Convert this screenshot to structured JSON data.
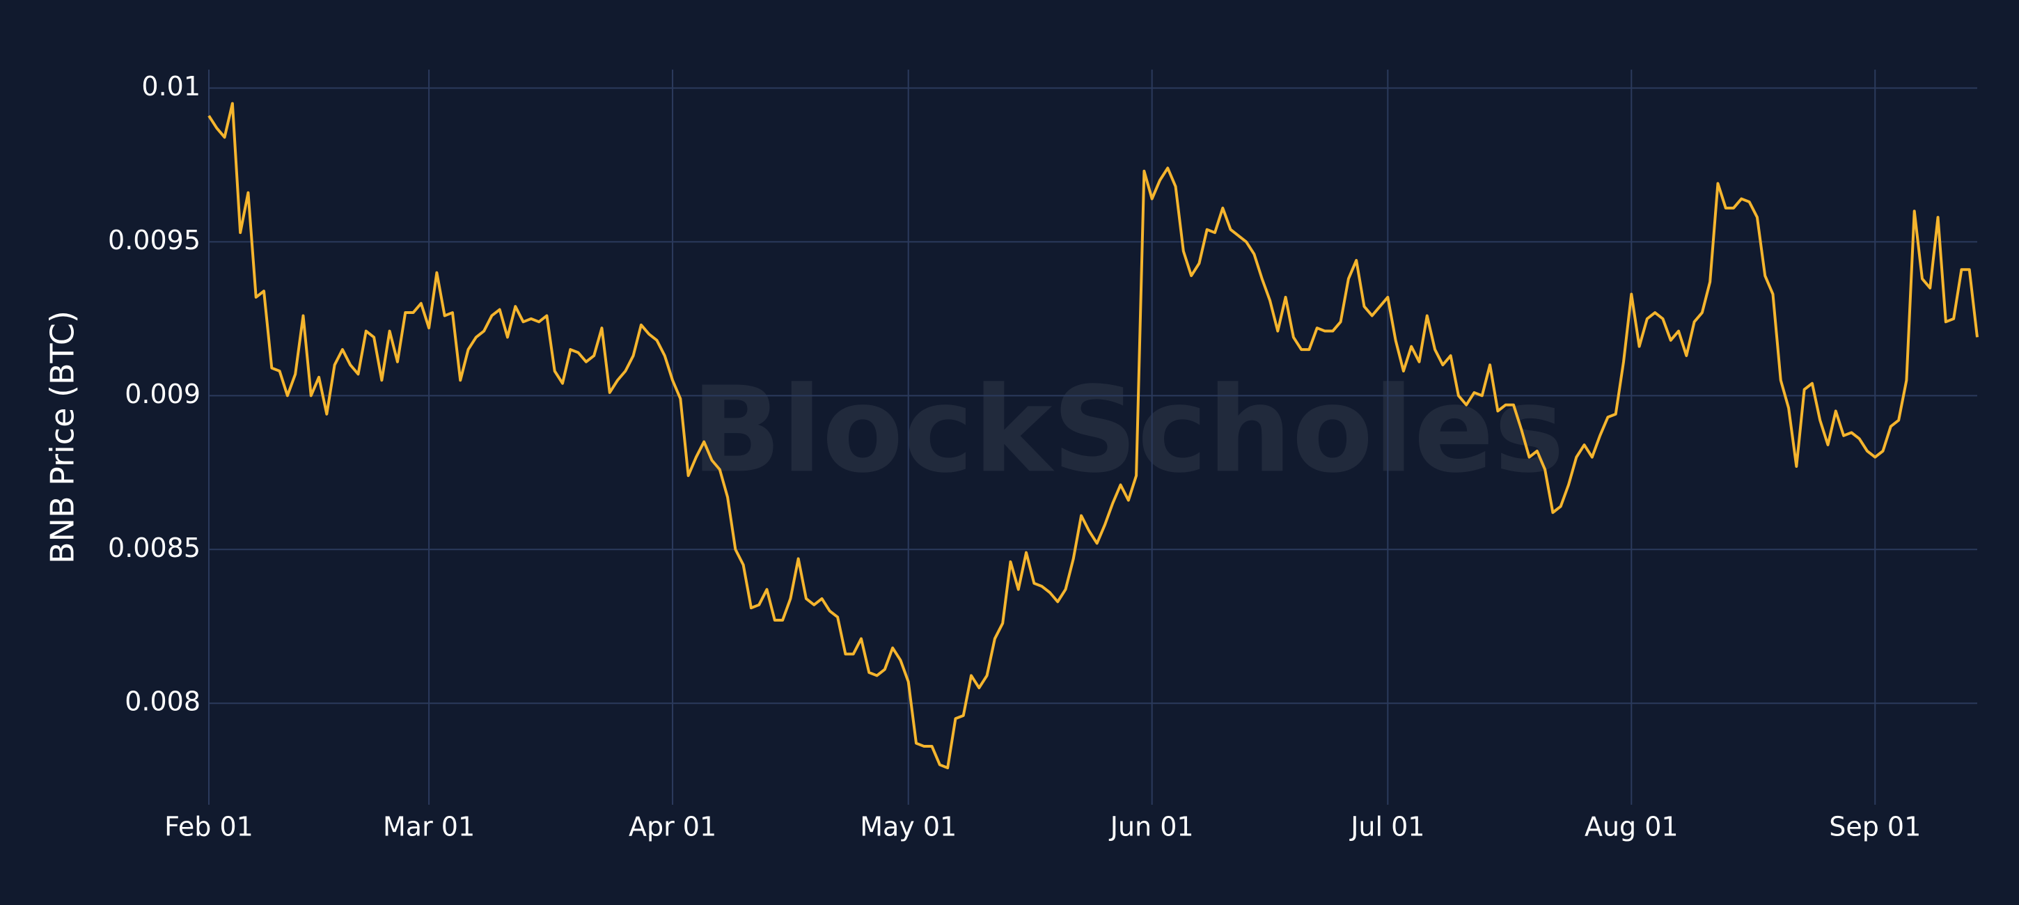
{
  "chart_data": {
    "type": "line",
    "y_label": "BNB Price (BTC)",
    "watermark": "BlockScholes",
    "color": "#f5b52e",
    "grid": true,
    "x": [
      "Feb 01",
      "Feb 02",
      "Feb 03",
      "Feb 04",
      "Feb 05",
      "Feb 06",
      "Feb 07",
      "Feb 08",
      "Feb 09",
      "Feb 10",
      "Feb 11",
      "Feb 12",
      "Feb 13",
      "Feb 14",
      "Feb 15",
      "Feb 16",
      "Feb 17",
      "Feb 18",
      "Feb 19",
      "Feb 20",
      "Feb 21",
      "Feb 22",
      "Feb 23",
      "Feb 24",
      "Feb 25",
      "Feb 26",
      "Feb 27",
      "Feb 28",
      "Mar 01",
      "Mar 02",
      "Mar 03",
      "Mar 04",
      "Mar 05",
      "Mar 06",
      "Mar 07",
      "Mar 08",
      "Mar 09",
      "Mar 10",
      "Mar 11",
      "Mar 12",
      "Mar 13",
      "Mar 14",
      "Mar 15",
      "Mar 16",
      "Mar 17",
      "Mar 18",
      "Mar 19",
      "Mar 20",
      "Mar 21",
      "Mar 22",
      "Mar 23",
      "Mar 24",
      "Mar 25",
      "Mar 26",
      "Mar 27",
      "Mar 28",
      "Mar 29",
      "Mar 30",
      "Mar 31",
      "Apr 01",
      "Apr 02",
      "Apr 03",
      "Apr 04",
      "Apr 05",
      "Apr 06",
      "Apr 07",
      "Apr 08",
      "Apr 09",
      "Apr 10",
      "Apr 11",
      "Apr 12",
      "Apr 13",
      "Apr 14",
      "Apr 15",
      "Apr 16",
      "Apr 17",
      "Apr 18",
      "Apr 19",
      "Apr 20",
      "Apr 21",
      "Apr 22",
      "Apr 23",
      "Apr 24",
      "Apr 25",
      "Apr 26",
      "Apr 27",
      "Apr 28",
      "Apr 29",
      "Apr 30",
      "May 01",
      "May 02",
      "May 03",
      "May 04",
      "May 05",
      "May 06",
      "May 07",
      "May 08",
      "May 09",
      "May 10",
      "May 11",
      "May 12",
      "May 13",
      "May 14",
      "May 15",
      "May 16",
      "May 17",
      "May 18",
      "May 19",
      "May 20",
      "May 21",
      "May 22",
      "May 23",
      "May 24",
      "May 25",
      "May 26",
      "May 27",
      "May 28",
      "May 29",
      "May 30",
      "May 31",
      "Jun 01",
      "Jun 02",
      "Jun 03",
      "Jun 04",
      "Jun 05",
      "Jun 06",
      "Jun 07",
      "Jun 08",
      "Jun 09",
      "Jun 10",
      "Jun 11",
      "Jun 12",
      "Jun 13",
      "Jun 14",
      "Jun 15",
      "Jun 16",
      "Jun 17",
      "Jun 18",
      "Jun 19",
      "Jun 20",
      "Jun 21",
      "Jun 22",
      "Jun 23",
      "Jun 24",
      "Jun 25",
      "Jun 26",
      "Jun 27",
      "Jun 28",
      "Jun 29",
      "Jun 30",
      "Jul 01",
      "Jul 02",
      "Jul 03",
      "Jul 04",
      "Jul 05",
      "Jul 06",
      "Jul 07",
      "Jul 08",
      "Jul 09",
      "Jul 10",
      "Jul 11",
      "Jul 12",
      "Jul 13",
      "Jul 14",
      "Jul 15",
      "Jul 16",
      "Jul 17",
      "Jul 18",
      "Jul 19",
      "Jul 20",
      "Jul 21",
      "Jul 22",
      "Jul 23",
      "Jul 24",
      "Jul 25",
      "Jul 26",
      "Jul 27",
      "Jul 28",
      "Jul 29",
      "Jul 30",
      "Jul 31",
      "Aug 01",
      "Aug 02",
      "Aug 03",
      "Aug 04",
      "Aug 05",
      "Aug 06",
      "Aug 07",
      "Aug 08",
      "Aug 09",
      "Aug 10",
      "Aug 11",
      "Aug 12",
      "Aug 13",
      "Aug 14",
      "Aug 15",
      "Aug 16",
      "Aug 17",
      "Aug 18",
      "Aug 19",
      "Aug 20",
      "Aug 21",
      "Aug 22",
      "Aug 23",
      "Aug 24",
      "Aug 25",
      "Aug 26",
      "Aug 27",
      "Aug 28",
      "Aug 29",
      "Aug 30",
      "Aug 31",
      "Sep 01",
      "Sep 02",
      "Sep 03",
      "Sep 04",
      "Sep 05",
      "Sep 06",
      "Sep 07",
      "Sep 08",
      "Sep 09",
      "Sep 10",
      "Sep 11",
      "Sep 12",
      "Sep 13",
      "Sep 14"
    ],
    "values": [
      0.00991,
      0.00987,
      0.00984,
      0.00995,
      0.00953,
      0.00966,
      0.00932,
      0.00934,
      0.00909,
      0.00908,
      0.009,
      0.00907,
      0.00926,
      0.009,
      0.00906,
      0.00894,
      0.0091,
      0.00915,
      0.0091,
      0.00907,
      0.00921,
      0.00919,
      0.00905,
      0.00921,
      0.00911,
      0.00927,
      0.00927,
      0.0093,
      0.00922,
      0.0094,
      0.00926,
      0.00927,
      0.00905,
      0.00915,
      0.00919,
      0.00921,
      0.00926,
      0.00928,
      0.00919,
      0.00929,
      0.00924,
      0.00925,
      0.00924,
      0.00926,
      0.00908,
      0.00904,
      0.00915,
      0.00914,
      0.00911,
      0.00913,
      0.00922,
      0.00901,
      0.00905,
      0.00908,
      0.00913,
      0.00923,
      0.0092,
      0.00918,
      0.00913,
      0.00905,
      0.00899,
      0.00874,
      0.0088,
      0.00885,
      0.00879,
      0.00876,
      0.00867,
      0.0085,
      0.00845,
      0.00831,
      0.00832,
      0.00837,
      0.00827,
      0.00827,
      0.00834,
      0.00847,
      0.00834,
      0.00832,
      0.00834,
      0.0083,
      0.00828,
      0.00816,
      0.00816,
      0.00821,
      0.0081,
      0.00809,
      0.00811,
      0.00818,
      0.00814,
      0.00807,
      0.00787,
      0.00786,
      0.00786,
      0.0078,
      0.00779,
      0.00795,
      0.00796,
      0.00809,
      0.00805,
      0.00809,
      0.00821,
      0.00826,
      0.00846,
      0.00837,
      0.00849,
      0.00839,
      0.00838,
      0.00836,
      0.00833,
      0.00837,
      0.00847,
      0.00861,
      0.00856,
      0.00852,
      0.00858,
      0.00865,
      0.00871,
      0.00866,
      0.00874,
      0.00973,
      0.00964,
      0.0097,
      0.00974,
      0.00968,
      0.00947,
      0.00939,
      0.00943,
      0.00954,
      0.00953,
      0.00961,
      0.00954,
      0.00952,
      0.0095,
      0.00946,
      0.00938,
      0.00931,
      0.00921,
      0.00932,
      0.00919,
      0.00915,
      0.00915,
      0.00922,
      0.00921,
      0.00921,
      0.00924,
      0.00938,
      0.00944,
      0.00929,
      0.00926,
      0.00929,
      0.00932,
      0.00918,
      0.00908,
      0.00916,
      0.00911,
      0.00926,
      0.00915,
      0.0091,
      0.00913,
      0.009,
      0.00897,
      0.00901,
      0.009,
      0.0091,
      0.00895,
      0.00897,
      0.00897,
      0.00889,
      0.0088,
      0.00882,
      0.00876,
      0.00862,
      0.00864,
      0.00871,
      0.0088,
      0.00884,
      0.0088,
      0.00887,
      0.00893,
      0.00894,
      0.00911,
      0.00933,
      0.00916,
      0.00925,
      0.00927,
      0.00925,
      0.00918,
      0.00921,
      0.00913,
      0.00924,
      0.00927,
      0.00937,
      0.00969,
      0.00961,
      0.00961,
      0.00964,
      0.00963,
      0.00958,
      0.00939,
      0.00933,
      0.00905,
      0.00896,
      0.00877,
      0.00902,
      0.00904,
      0.00892,
      0.00884,
      0.00895,
      0.00887,
      0.00888,
      0.00886,
      0.00882,
      0.0088,
      0.00882,
      0.0089,
      0.00892,
      0.00905,
      0.0096,
      0.00938,
      0.00935,
      0.00958,
      0.00924,
      0.00925,
      0.00941,
      0.00941,
      0.00919
    ],
    "xticks": [
      "Feb 01",
      "Mar 01",
      "Apr 01",
      "May 01",
      "Jun 01",
      "Jul 01",
      "Aug 01",
      "Sep 01"
    ],
    "ylim": [
      0.00767,
      0.01006
    ],
    "yticks": [
      0.008,
      0.0085,
      0.009,
      0.0095,
      0.01
    ]
  }
}
